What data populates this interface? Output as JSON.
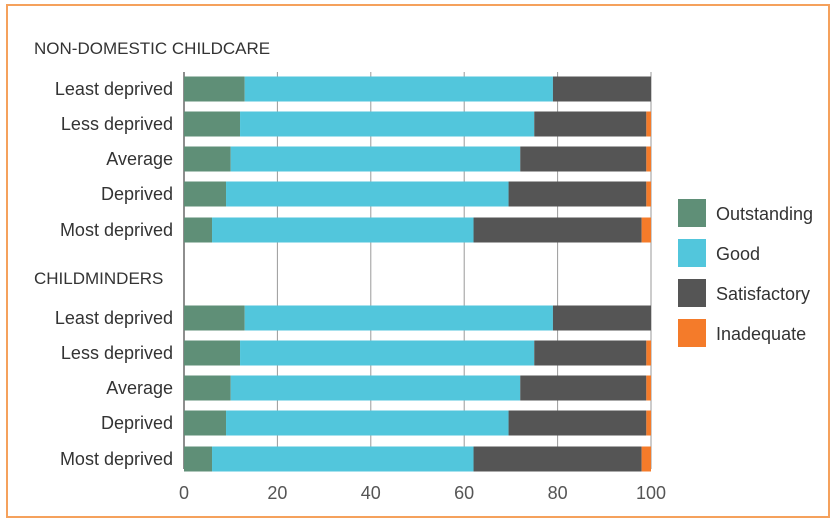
{
  "chart_data": {
    "type": "bar",
    "orientation": "horizontal",
    "stacked": true,
    "xlim": [
      0,
      100
    ],
    "xticks": [
      0,
      20,
      40,
      60,
      80,
      100
    ],
    "grid": "vertical",
    "legend_position": "right",
    "colors": {
      "Outstanding": "#5f8f77",
      "Good": "#52c6dc",
      "Satisfactory": "#555555",
      "Inadequate": "#f47b2a"
    },
    "groups": [
      {
        "title": "NON-DOMESTIC CHILDCARE",
        "categories": [
          "Least deprived",
          "Less deprived",
          "Average",
          "Deprived",
          "Most deprived"
        ],
        "series": [
          {
            "name": "Outstanding",
            "values": [
              13,
              12,
              10,
              9,
              6
            ]
          },
          {
            "name": "Good",
            "values": [
              66,
              63,
              62,
              60.5,
              56
            ]
          },
          {
            "name": "Satisfactory",
            "values": [
              21,
              24,
              27,
              29.5,
              36
            ]
          },
          {
            "name": "Inadequate",
            "values": [
              0,
              1,
              1,
              1,
              2
            ]
          }
        ]
      },
      {
        "title": "CHILDMINDERS",
        "categories": [
          "Least deprived",
          "Less deprived",
          "Average",
          "Deprived",
          "Most deprived"
        ],
        "series": [
          {
            "name": "Outstanding",
            "values": [
              13,
              12,
              10,
              9,
              6
            ]
          },
          {
            "name": "Good",
            "values": [
              66,
              63,
              62,
              60.5,
              56
            ]
          },
          {
            "name": "Satisfactory",
            "values": [
              21,
              24,
              27,
              29.5,
              36
            ]
          },
          {
            "name": "Inadequate",
            "values": [
              0,
              1,
              1,
              1,
              2
            ]
          }
        ]
      }
    ],
    "legend": [
      "Outstanding",
      "Good",
      "Satisfactory",
      "Inadequate"
    ]
  }
}
